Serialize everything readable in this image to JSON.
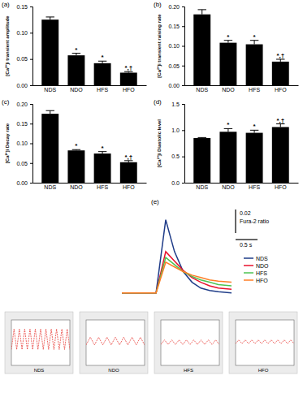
{
  "chart_data": [
    {
      "type": "bar",
      "title": "(a)",
      "y_label": "[Ca²⁺]i transient amplitude",
      "categories": [
        "NDS",
        "NDO",
        "HFS",
        "HFO"
      ],
      "values": [
        0.125,
        0.057,
        0.042,
        0.024
      ],
      "errors": [
        0.005,
        0.004,
        0.004,
        0.002
      ],
      "color": "#000000",
      "ylim": [
        0,
        0.15
      ],
      "yticks": [
        {
          "value": 0,
          "label": "0.00"
        },
        0.05,
        {
          "value": 0.1,
          "label": "0.10"
        },
        0.15
      ],
      "annotations": [
        {
          "x": "NDO",
          "text": "*"
        },
        {
          "x": "HFS",
          "text": "*"
        },
        {
          "x": "HFO",
          "text": "*,†"
        }
      ]
    },
    {
      "type": "bar",
      "title": "(b)",
      "y_label": "[Ca²⁺]i transient raising rate",
      "categories": [
        "NDS",
        "NDO",
        "HFS",
        "HFO"
      ],
      "values": [
        0.18,
        0.108,
        0.104,
        0.06
      ],
      "errors": [
        0.012,
        0.006,
        0.01,
        0.006
      ],
      "color": "#000000",
      "ylim": [
        0,
        0.2
      ],
      "yticks": [
        {
          "value": 0,
          "label": "0.00"
        },
        0.05,
        {
          "value": 0.1,
          "label": "0.10"
        },
        0.15,
        {
          "value": 0.2,
          "label": "0.20"
        }
      ],
      "annotations": [
        {
          "x": "NDO",
          "text": "*"
        },
        {
          "x": "HFS",
          "text": "*"
        },
        {
          "x": "HFO",
          "text": "*,†"
        }
      ]
    },
    {
      "type": "bar",
      "title": "(c)",
      "y_label": "[Ca²⁺]i Decay rate",
      "categories": [
        "NDS",
        "NDO",
        "HFS",
        "HFO"
      ],
      "values": [
        0.175,
        0.082,
        0.074,
        0.052
      ],
      "errors": [
        0.008,
        0.002,
        0.005,
        0.004
      ],
      "color": "#000000",
      "ylim": [
        0,
        0.2
      ],
      "yticks": [
        {
          "value": 0,
          "label": "0.00"
        },
        0.05,
        {
          "value": 0.1,
          "label": "0.10"
        },
        0.15,
        {
          "value": 0.2,
          "label": "0.20"
        }
      ],
      "annotations": [
        {
          "x": "NDO",
          "text": "*"
        },
        {
          "x": "HFS",
          "text": "*"
        },
        {
          "x": "HFO",
          "text": "*,†"
        }
      ]
    },
    {
      "type": "bar",
      "title": "(d)",
      "y_label": "[Ca²⁺]i Diastolic  level",
      "categories": [
        "NDS",
        "NDO",
        "HFS",
        "HFO"
      ],
      "values": [
        0.85,
        0.97,
        0.95,
        1.06
      ],
      "errors": [
        0.01,
        0.06,
        0.05,
        0.06
      ],
      "color": "#000000",
      "ylim": [
        0,
        1.5
      ],
      "yticks": [
        {
          "value": 0,
          "label": "0.0"
        },
        0.5,
        {
          "value": 1,
          "label": "1.0"
        },
        1.5
      ],
      "annotations": [
        {
          "x": "NDO",
          "text": "*"
        },
        {
          "x": "HFS",
          "text": "*"
        },
        {
          "x": "HFO",
          "text": "*,†"
        }
      ]
    },
    {
      "type": "line",
      "title": "(e)",
      "x": [
        0,
        0.78,
        1.0,
        1.2,
        1.4,
        1.6,
        1.8,
        2.0,
        2.2,
        2.5
      ],
      "xlim": [
        0,
        2.5
      ],
      "ylim": [
        -0.003,
        0.068
      ],
      "tick_labels": false,
      "legend": "right",
      "series": [
        {
          "name": "NDS",
          "color": "#1f3c88",
          "values": [
            0,
            0,
            0.062,
            0.035,
            0.018,
            0.009,
            0.004,
            0.002,
            0.001,
            0
          ]
        },
        {
          "name": "NDO",
          "color": "#e8112d",
          "values": [
            0,
            0,
            0.035,
            0.027,
            0.019,
            0.013,
            0.009,
            0.006,
            0.004,
            0.003
          ]
        },
        {
          "name": "HFS",
          "color": "#4cc552",
          "values": [
            0,
            0,
            0.03,
            0.024,
            0.018,
            0.014,
            0.011,
            0.009,
            0.007,
            0.006
          ]
        },
        {
          "name": "HFO",
          "color": "#ff7f27",
          "values": [
            0,
            0,
            0.026,
            0.022,
            0.018,
            0.015,
            0.013,
            0.011,
            0.01,
            0.009
          ]
        }
      ],
      "scale_bar": {
        "x": 0.5,
        "x_label": "0.5 s",
        "y": 0.02,
        "y_label": "0.02",
        "y_title": "Fura-2 ratio"
      }
    },
    {
      "type": "line",
      "x_label": "NDS",
      "color": "#e8413c",
      "tick_labels": false,
      "xlim": [
        0,
        22
      ],
      "ylim": [
        0,
        1
      ],
      "x": [
        0,
        1,
        2,
        3,
        4,
        5,
        6,
        7,
        8,
        9,
        10,
        11,
        12,
        13,
        14,
        15,
        16,
        17,
        18,
        19,
        20,
        21,
        22
      ],
      "values": [
        0.35,
        0.8,
        0.35,
        0.8,
        0.35,
        0.8,
        0.35,
        0.8,
        0.35,
        0.8,
        0.35,
        0.8,
        0.35,
        0.8,
        0.35,
        0.8,
        0.35,
        0.8,
        0.35,
        0.8,
        0.35,
        0.8,
        0.35
      ]
    },
    {
      "type": "line",
      "x_label": "NDO",
      "color": "#e8413c",
      "tick_labels": false,
      "xlim": [
        0,
        14
      ],
      "ylim": [
        0,
        1
      ],
      "x": [
        0,
        1,
        2,
        3,
        4,
        5,
        6,
        7,
        8,
        9,
        10,
        11,
        12,
        13,
        14
      ],
      "values": [
        0.45,
        0.62,
        0.45,
        0.62,
        0.45,
        0.62,
        0.45,
        0.62,
        0.45,
        0.62,
        0.45,
        0.62,
        0.45,
        0.62,
        0.45
      ]
    },
    {
      "type": "line",
      "x_label": "HFS",
      "color": "#e8413c",
      "tick_labels": false,
      "xlim": [
        0,
        16
      ],
      "ylim": [
        0,
        1
      ],
      "x": [
        0,
        1,
        2,
        3,
        4,
        5,
        6,
        7,
        8,
        9,
        10,
        11,
        12,
        13,
        14,
        15,
        16
      ],
      "values": [
        0.46,
        0.56,
        0.46,
        0.56,
        0.46,
        0.56,
        0.46,
        0.56,
        0.46,
        0.56,
        0.46,
        0.56,
        0.46,
        0.56,
        0.46,
        0.56,
        0.46
      ]
    },
    {
      "type": "line",
      "x_label": "HFO",
      "color": "#e8413c",
      "tick_labels": false,
      "xlim": [
        0,
        18
      ],
      "ylim": [
        0,
        1
      ],
      "x": [
        0,
        1,
        2,
        3,
        4,
        5,
        6,
        7,
        8,
        9,
        10,
        11,
        12,
        13,
        14,
        15,
        16,
        17,
        18
      ],
      "values": [
        0.48,
        0.56,
        0.48,
        0.56,
        0.48,
        0.56,
        0.48,
        0.56,
        0.48,
        0.56,
        0.48,
        0.56,
        0.48,
        0.56,
        0.48,
        0.56,
        0.48,
        0.56,
        0.48
      ]
    }
  ]
}
